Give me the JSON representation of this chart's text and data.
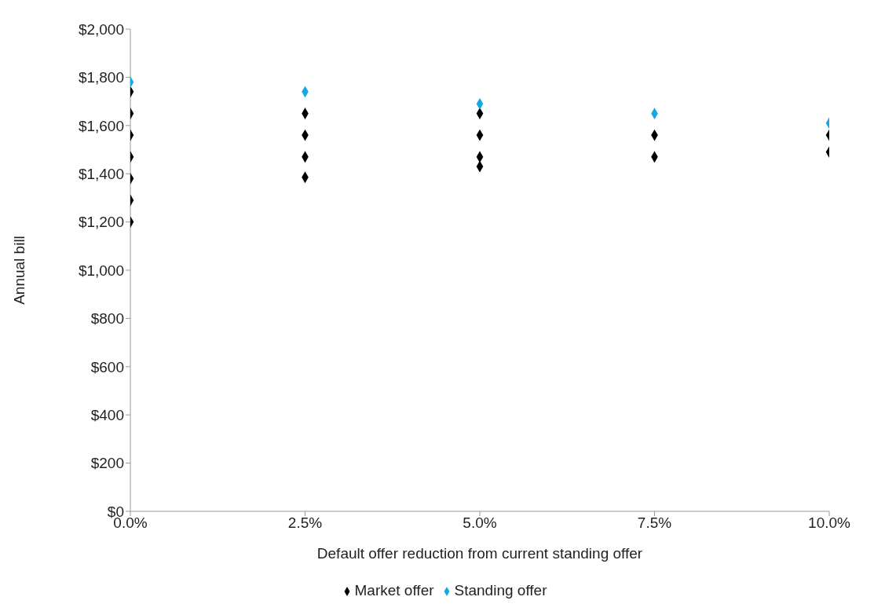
{
  "chart_data": {
    "type": "scatter",
    "xlabel": "Default offer reduction from current standing offer",
    "ylabel": "Annual bill",
    "xlim": [
      0,
      10
    ],
    "xticks": [
      {
        "value": 0,
        "label": "0.0%"
      },
      {
        "value": 2.5,
        "label": "2.5%"
      },
      {
        "value": 5,
        "label": "5.0%"
      },
      {
        "value": 7.5,
        "label": "7.5%"
      },
      {
        "value": 10,
        "label": "10.0%"
      }
    ],
    "ylim": [
      0,
      2000
    ],
    "yticks": [
      {
        "value": 0,
        "label": "$0"
      },
      {
        "value": 200,
        "label": "$200"
      },
      {
        "value": 400,
        "label": "$400"
      },
      {
        "value": 600,
        "label": "$600"
      },
      {
        "value": 800,
        "label": "$800"
      },
      {
        "value": 1000,
        "label": "$1,000"
      },
      {
        "value": 1200,
        "label": "$1,200"
      },
      {
        "value": 1400,
        "label": "$1,400"
      },
      {
        "value": 1600,
        "label": "$1,600"
      },
      {
        "value": 1800,
        "label": "$1,800"
      },
      {
        "value": 2000,
        "label": "$2,000"
      }
    ],
    "grid": false,
    "legend": "bottom",
    "marker": "diamond",
    "series": [
      {
        "name": "Market offer",
        "color": "#000000",
        "x": [
          0,
          0,
          0,
          0,
          0,
          0,
          0,
          2.5,
          2.5,
          2.5,
          2.5,
          5,
          5,
          5,
          5,
          7.5,
          7.5,
          10,
          10
        ],
        "values": [
          1740,
          1650,
          1560,
          1470,
          1380,
          1290,
          1200,
          1650,
          1560,
          1470,
          1385,
          1650,
          1560,
          1470,
          1430,
          1560,
          1470,
          1560,
          1490
        ]
      },
      {
        "name": "Standing offer",
        "color": "#17a8e3",
        "x": [
          0,
          2.5,
          5,
          7.5,
          10
        ],
        "values": [
          1780,
          1740,
          1690,
          1650,
          1610
        ]
      }
    ]
  }
}
